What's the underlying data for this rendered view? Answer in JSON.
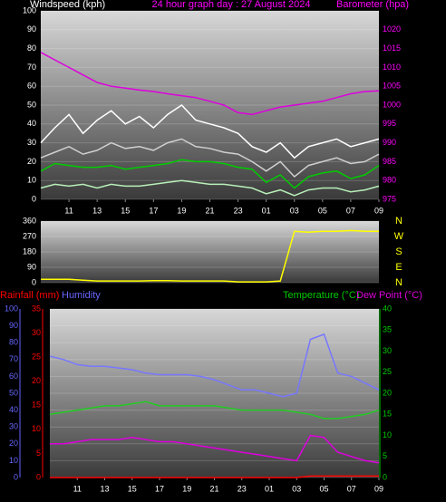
{
  "chart_data": [
    {
      "type": "line",
      "title": "24 hour graph day : 27 August 2024",
      "title_color": "#ff00ff",
      "ylabel": "Windspeed (kph)",
      "ycolor": "#ffffff",
      "y2label": "Barometer (hpa)",
      "y2color": "#ff00ff",
      "x": [
        0,
        1,
        2,
        3,
        4,
        5,
        6,
        7,
        8,
        9,
        10,
        11,
        12,
        13,
        14,
        15,
        16,
        17,
        18,
        19,
        20,
        21,
        22,
        23,
        24
      ],
      "xlim": [
        0,
        24
      ],
      "xticks": [
        {
          "value": 2,
          "label": "11"
        },
        {
          "value": 4,
          "label": "13"
        },
        {
          "value": 6,
          "label": "15"
        },
        {
          "value": 8,
          "label": "17"
        },
        {
          "value": 10,
          "label": "19"
        },
        {
          "value": 12,
          "label": "21"
        },
        {
          "value": 14,
          "label": "23"
        },
        {
          "value": 16,
          "label": "01"
        },
        {
          "value": 18,
          "label": "03"
        },
        {
          "value": 20,
          "label": "05"
        },
        {
          "value": 22,
          "label": "07"
        },
        {
          "value": 24,
          "label": "09"
        }
      ],
      "ylim": [
        0,
        100
      ],
      "yticks": [
        0,
        10,
        20,
        30,
        40,
        50,
        60,
        70,
        80,
        90,
        100
      ],
      "y2lim": [
        975,
        1025
      ],
      "y2ticks": [
        975,
        980,
        985,
        990,
        995,
        1000,
        1005,
        1010,
        1015,
        1020
      ],
      "grid": true,
      "series": [
        {
          "color": "#ffffff",
          "values": [
            30,
            38,
            45,
            35,
            42,
            47,
            40,
            44,
            38,
            45,
            50,
            42,
            40,
            38,
            35,
            28,
            25,
            30,
            22,
            28,
            30,
            32,
            28,
            30,
            32
          ]
        },
        {
          "color": "#cfcfcf",
          "values": [
            22,
            25,
            28,
            24,
            26,
            30,
            27,
            28,
            26,
            30,
            32,
            28,
            27,
            25,
            24,
            20,
            15,
            20,
            12,
            18,
            20,
            22,
            19,
            20,
            24
          ]
        },
        {
          "color": "#b8f0b8",
          "values": [
            6,
            8,
            7,
            8,
            6,
            8,
            7,
            7,
            8,
            9,
            10,
            9,
            8,
            8,
            7,
            6,
            3,
            5,
            2,
            5,
            6,
            6,
            4,
            5,
            7
          ]
        },
        {
          "color": "#00cc00",
          "values": [
            15,
            19,
            18,
            17,
            17,
            18,
            16,
            17,
            18,
            19,
            21,
            20,
            20,
            19,
            17,
            16,
            9,
            13,
            6,
            12,
            14,
            15,
            11,
            13,
            18
          ]
        },
        {
          "color": "#dd00dd",
          "axis": "y2",
          "values": [
            1014,
            1012,
            1010,
            1008,
            1006,
            1005,
            1004.5,
            1004,
            1003.6,
            1003,
            1002.5,
            1002,
            1001,
            1000,
            998,
            997.5,
            998.5,
            999.5,
            1000,
            1000.5,
            1001,
            1002,
            1003,
            1003.6,
            1003.8
          ]
        }
      ]
    },
    {
      "type": "line",
      "ycolor": "#ffffff",
      "y2color": "#ffff00",
      "x": [
        0,
        1,
        2,
        3,
        4,
        5,
        6,
        7,
        8,
        9,
        10,
        11,
        12,
        13,
        14,
        15,
        16,
        17,
        18,
        19,
        20,
        21,
        22,
        23,
        24
      ],
      "xlim": [
        0,
        24
      ],
      "ylim": [
        0,
        360
      ],
      "yticks": [
        0,
        90,
        180,
        270,
        360
      ],
      "y2lim": [
        0,
        360
      ],
      "y2ticks": [
        {
          "value": 360,
          "label": "N"
        },
        {
          "value": 270,
          "label": "W"
        },
        {
          "value": 180,
          "label": "S"
        },
        {
          "value": 90,
          "label": "E"
        },
        {
          "value": 0,
          "label": "N"
        }
      ],
      "grid": true,
      "series": [
        {
          "color": "#ffff00",
          "values": [
            20,
            20,
            20,
            15,
            10,
            10,
            10,
            10,
            12,
            12,
            10,
            10,
            10,
            10,
            5,
            5,
            5,
            10,
            300,
            295,
            300,
            300,
            305,
            300,
            300
          ]
        }
      ]
    },
    {
      "type": "line",
      "ylabel": "Humidity",
      "ycolor": "#6666ff",
      "y3label": "Rainfall (mm)",
      "y3color": "#ff0000",
      "y2label": "Temperature (°C)",
      "y2color": "#00cc00",
      "x": [
        0,
        1,
        2,
        3,
        4,
        5,
        6,
        7,
        8,
        9,
        10,
        11,
        12,
        13,
        14,
        15,
        16,
        17,
        18,
        19,
        20,
        21,
        22,
        23,
        24
      ],
      "xlim": [
        0,
        24
      ],
      "xticks": [
        {
          "value": 2,
          "label": "11"
        },
        {
          "value": 4,
          "label": "13"
        },
        {
          "value": 6,
          "label": "15"
        },
        {
          "value": 8,
          "label": "17"
        },
        {
          "value": 10,
          "label": "19"
        },
        {
          "value": 12,
          "label": "21"
        },
        {
          "value": 14,
          "label": "23"
        },
        {
          "value": 16,
          "label": "01"
        },
        {
          "value": 18,
          "label": "03"
        },
        {
          "value": 20,
          "label": "05"
        },
        {
          "value": 22,
          "label": "07"
        },
        {
          "value": 24,
          "label": "09"
        }
      ],
      "ylim": [
        0,
        100
      ],
      "yticks": [
        0,
        10,
        20,
        30,
        40,
        50,
        60,
        70,
        80,
        90,
        100
      ],
      "y3lim": [
        0,
        35
      ],
      "y3ticks": [
        0,
        5,
        10,
        15,
        20,
        25,
        30,
        35
      ],
      "y2lim": [
        0,
        40
      ],
      "y2ticks": [
        0,
        5,
        10,
        15,
        20,
        25,
        30,
        35,
        40
      ],
      "grid": true,
      "series": [
        {
          "color": "#7777ff",
          "values": [
            72,
            70,
            67,
            66,
            66,
            65,
            64,
            62,
            61,
            61,
            61,
            60,
            58,
            55,
            52,
            52,
            50,
            48,
            50,
            82,
            85,
            62,
            60,
            56,
            52
          ]
        },
        {
          "color": "#22cc22",
          "axis": "y2",
          "values": [
            15,
            15.5,
            16,
            16.5,
            17,
            17,
            17.5,
            18,
            17,
            17,
            17,
            17,
            17,
            16.5,
            16,
            16,
            16,
            16,
            15.5,
            15,
            14,
            14,
            14.5,
            15,
            16
          ]
        },
        {
          "name": "Dew Point (°C)",
          "color": "#dd00dd",
          "axis": "y2",
          "values": [
            8,
            8,
            8.5,
            9,
            9,
            9,
            9.5,
            9,
            8.5,
            8.5,
            8,
            7.5,
            7,
            6.5,
            6,
            5.5,
            5,
            4.5,
            4,
            10,
            9.5,
            6,
            5,
            4,
            3.5
          ]
        },
        {
          "color": "#ff0000",
          "axis": "y3",
          "values": [
            0,
            0,
            0,
            0,
            0,
            0,
            0,
            0,
            0,
            0,
            0,
            0,
            0,
            0,
            0,
            0,
            0,
            0,
            0,
            0.3,
            0.3,
            0.3,
            0.3,
            0.3,
            0.3
          ]
        }
      ]
    }
  ]
}
